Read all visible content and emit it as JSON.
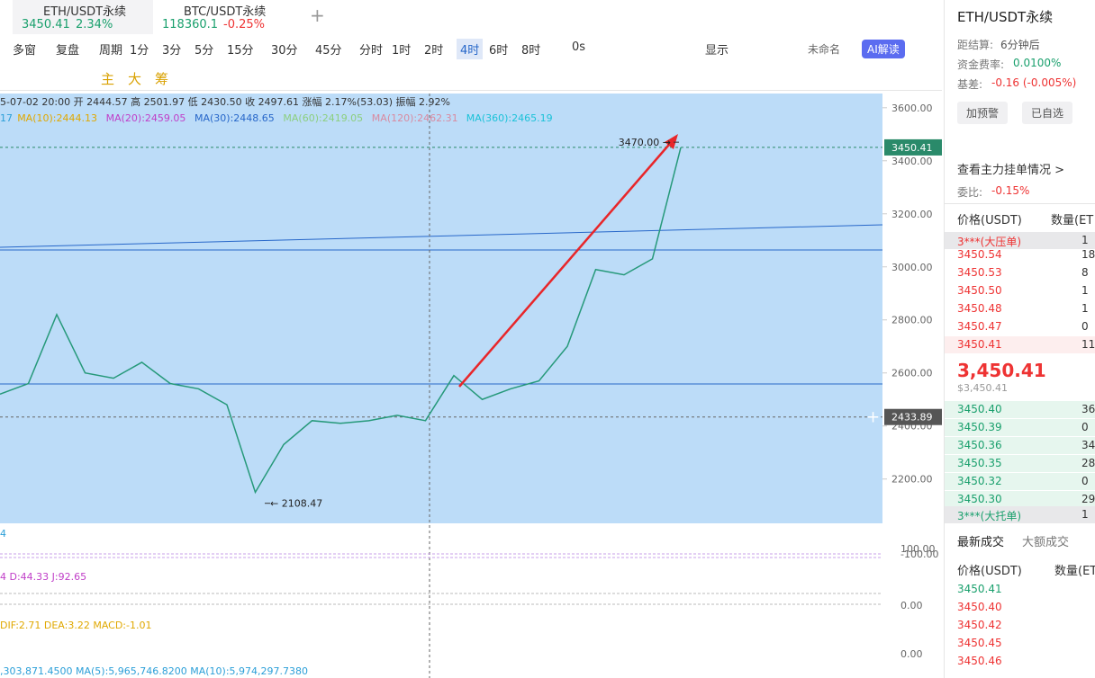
{
  "tabs": [
    {
      "symbol": "ETH/USDT永续",
      "price": "3450.41",
      "change": "2.34%"
    },
    {
      "symbol": "BTC/USDT永续",
      "price": "118360.1",
      "change": "-0.25%"
    }
  ],
  "toolbar": {
    "items": [
      "多窗",
      "复盘",
      "周期",
      "1分",
      "3分",
      "5分",
      "15分",
      "30分",
      "45分",
      "分时",
      "1时",
      "2时",
      "4时",
      "6时",
      "8时",
      "0s"
    ],
    "active": "4时",
    "display": "显示",
    "layout_name": "未命名",
    "ai": "AI解读"
  },
  "draw_tools": [
    "主",
    "大",
    "筹"
  ],
  "chart": {
    "ohlc": "5-07-02 20:00  开 2444.57  高 2501.97  低 2430.50  收 2497.61  涨幅 2.17%(53.03)  振幅 2.92%",
    "ma": [
      {
        "text": "17",
        "color": "#2b9fd8"
      },
      {
        "text": "MA(10):2444.13",
        "color": "#e0a800"
      },
      {
        "text": "MA(20):2459.05",
        "color": "#c03fc8"
      },
      {
        "text": "MA(30):2448.65",
        "color": "#2767c9"
      },
      {
        "text": "MA(60):2419.05",
        "color": "#8ccf7e"
      },
      {
        "text": "MA(120):2462.31",
        "color": "#d98aa0"
      },
      {
        "text": "MA(360):2465.19",
        "color": "#1bc2d8"
      }
    ],
    "ylim": [
      2060,
      3640
    ],
    "yticks": [
      {
        "value": 2200,
        "label": "2200.00"
      },
      {
        "value": 2400,
        "label": "2400.00"
      },
      {
        "value": 2600,
        "label": "2600.00"
      },
      {
        "value": 2800,
        "label": "2800.00"
      },
      {
        "value": 3000,
        "label": "3000.00"
      },
      {
        "value": 3200,
        "label": "3200.00"
      },
      {
        "value": 3400,
        "label": "3400.00"
      },
      {
        "value": 3600,
        "label": "3600.00"
      }
    ],
    "last_price": 3450.41,
    "cursor_price": 2433.89,
    "high": {
      "value": 3470,
      "label": "3470.00 →"
    },
    "low": {
      "value": 2108.47,
      "label": "← 2108.47"
    },
    "closes": [
      2520,
      2560,
      2820,
      2600,
      2580,
      2640,
      2560,
      2540,
      2480,
      2150,
      2330,
      2420,
      2410,
      2420,
      2440,
      2420,
      2590,
      2500,
      2540,
      2570,
      2700,
      2990,
      2970,
      3030,
      3450
    ]
  },
  "indicators": [
    {
      "text": "4",
      "axis": [
        "100.00",
        "-100.00"
      ]
    },
    {
      "text": "4  D:44.33  J:92.65",
      "axis": [
        "0.00"
      ]
    },
    {
      "text": "DIF:2.71  DEA:3.22  MACD:-1.01",
      "axis": [
        "0.00"
      ]
    },
    {
      "text": ",303,871.4500  MA(5):5,965,746.8200  MA(10):5,974,297.7380",
      "axis": []
    }
  ],
  "sidebar": {
    "symbol": "ETH/USDT永续",
    "info": [
      [
        "距结算:",
        "6分钟后"
      ],
      [
        "资金费率:",
        "0.0100%"
      ],
      [
        "基差:",
        "-0.16 (-0.005%)"
      ]
    ],
    "buttons": [
      "加预警",
      "已自选"
    ],
    "depth_link": "查看主力挂单情况 >",
    "ratio": [
      "委比:",
      "-0.15%"
    ],
    "headers": [
      "价格(USDT)",
      "数量(ET"
    ],
    "big_ask": [
      "3***(大压单)",
      "1"
    ],
    "asks": [
      [
        "3450.54",
        "18"
      ],
      [
        "3450.53",
        "8"
      ],
      [
        "3450.50",
        "1"
      ],
      [
        "3450.48",
        "1"
      ],
      [
        "3450.47",
        "0"
      ],
      [
        "3450.41",
        "11"
      ]
    ],
    "last": "3,450.41",
    "last_usd": "$3,450.41",
    "bids": [
      [
        "3450.40",
        "36"
      ],
      [
        "3450.39",
        "0"
      ],
      [
        "3450.36",
        "34"
      ],
      [
        "3450.35",
        "28"
      ],
      [
        "3450.32",
        "0"
      ],
      [
        "3450.30",
        "29"
      ]
    ],
    "big_bid": [
      "3***(大托单)",
      "1"
    ],
    "trade_tabs": [
      "最新成交",
      "大额成交"
    ],
    "trade_headers": [
      "价格(USDT)",
      "数量(ET"
    ],
    "trades": [
      {
        "price": "3450.41",
        "side": "buy"
      },
      {
        "price": "3450.40",
        "side": "sell"
      },
      {
        "price": "3450.42",
        "side": "sell"
      },
      {
        "price": "3450.45",
        "side": "sell"
      },
      {
        "price": "3450.46",
        "side": "sell"
      }
    ]
  }
}
